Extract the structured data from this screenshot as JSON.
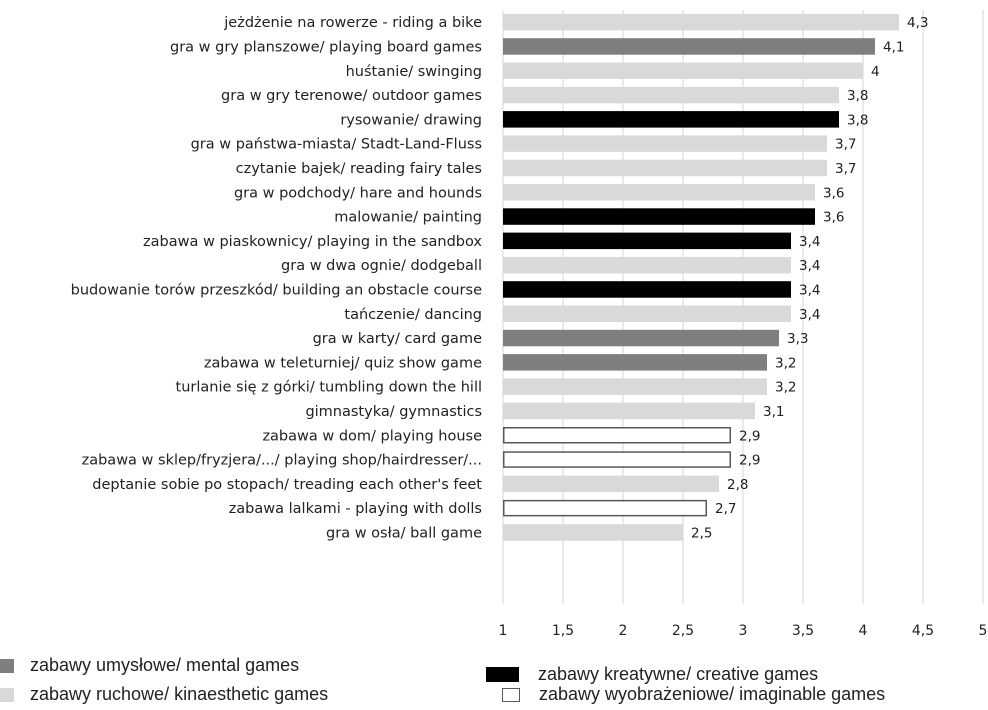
{
  "chart_data": {
    "type": "bar",
    "orientation": "horizontal",
    "categories": [
      "jeżdżenie na rowerze - riding a bike",
      "gra w gry planszowe/ playing board games",
      "huśtanie/ swinging",
      "gra w gry terenowe/ outdoor games",
      "rysowanie/ drawing",
      "gra w państwa-miasta/ Stadt-Land-Fluss",
      "czytanie bajek/ reading fairy tales",
      "gra w podchody/ hare and hounds",
      "malowanie/ painting",
      "zabawa w piaskownicy/ playing in the sandbox",
      "gra w dwa ognie/ dodgeball",
      "budowanie torów przeszkód/ building an obstacle course",
      "tańczenie/ dancing",
      "gra w karty/ card game",
      "zabawa w teleturniej/ quiz show game",
      "turlanie się z górki/ tumbling down the hill",
      "gimnastyka/ gymnastics",
      "zabawa w dom/ playing house",
      "zabawa w sklep/fryzjera/.../ playing shop/hairdresser/...",
      "deptanie sobie po stopach/ treading each other's feet",
      "zabawa lalkami - playing with dolls",
      "gra w osła/ ball game"
    ],
    "values": [
      4.3,
      4.1,
      4,
      3.8,
      3.8,
      3.7,
      3.7,
      3.6,
      3.6,
      3.4,
      3.4,
      3.4,
      3.4,
      3.3,
      3.2,
      3.2,
      3.1,
      2.9,
      2.9,
      2.8,
      2.7,
      2.5
    ],
    "value_labels": [
      "4,3",
      "4,1",
      "4",
      "3,8",
      "3,8",
      "3,7",
      "3,7",
      "3,6",
      "3,6",
      "3,4",
      "3,4",
      "3,4",
      "3,4",
      "3,3",
      "3,2",
      "3,2",
      "3,1",
      "2,9",
      "2,9",
      "2,8",
      "2,7",
      "2,5"
    ],
    "groups": [
      "kinaesthetic",
      "mental",
      "kinaesthetic",
      "kinaesthetic",
      "creative",
      "kinaesthetic",
      "kinaesthetic",
      "kinaesthetic",
      "creative",
      "creative",
      "kinaesthetic",
      "creative",
      "kinaesthetic",
      "mental",
      "mental",
      "kinaesthetic",
      "kinaesthetic",
      "imaginable",
      "imaginable",
      "kinaesthetic",
      "imaginable",
      "kinaesthetic"
    ],
    "xlim": [
      1,
      5
    ],
    "x_ticks": [
      1,
      1.5,
      2,
      2.5,
      3,
      3.5,
      4,
      4.5,
      5
    ],
    "x_tick_labels": [
      "1",
      "1,5",
      "2",
      "2,5",
      "3",
      "3,5",
      "4",
      "4,5",
      "5"
    ],
    "grid": "vertical",
    "legend_position": "bottom",
    "title": "",
    "xlabel": "",
    "ylabel": ""
  },
  "legend": [
    {
      "key": "mental",
      "label": "zabawy umysłowe/ mental games",
      "fill": "#7f7f7f",
      "stroke": "#7f7f7f"
    },
    {
      "key": "creative",
      "label": "zabawy kreatywne/ creative games",
      "fill": "#000000",
      "stroke": "#000000"
    },
    {
      "key": "kinaesthetic",
      "label": "zabawy ruchowe/ kinaesthetic games",
      "fill": "#d9d9d9",
      "stroke": "#d9d9d9"
    },
    {
      "key": "imaginable",
      "label": "zabawy wyobrażeniowe/ imaginable games",
      "fill": "#ffffff",
      "stroke": "#595959"
    }
  ],
  "colors": {
    "mental": "#7f7f7f",
    "creative": "#000000",
    "kinaesthetic": "#d9d9d9",
    "imaginable_fill": "#ffffff",
    "imaginable_stroke": "#595959",
    "grid": "#d4d4d4"
  }
}
